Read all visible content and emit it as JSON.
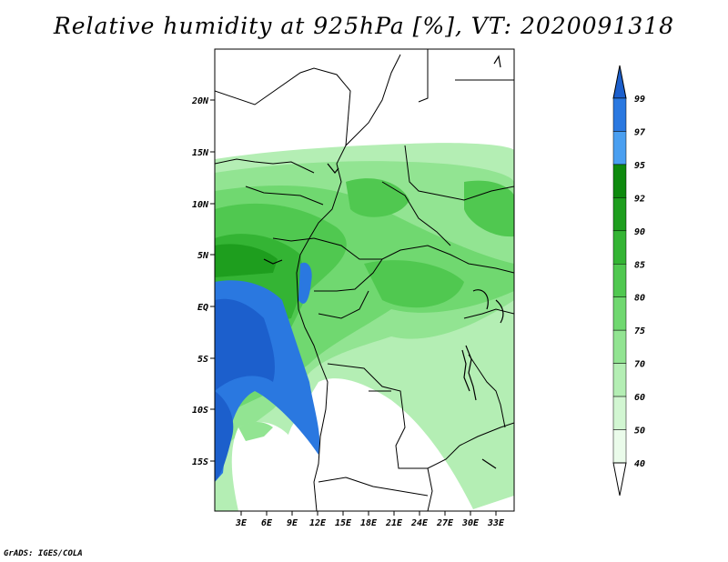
{
  "title": "Relative humidity at 925hPa [%], VT: 2020091318",
  "credit": "GrADS: IGES/COLA",
  "lat_ticks": [
    "20N",
    "15N",
    "10N",
    "5N",
    "EQ",
    "5S",
    "10S",
    "15S"
  ],
  "lon_ticks": [
    "3E",
    "6E",
    "9E",
    "12E",
    "15E",
    "18E",
    "21E",
    "24E",
    "27E",
    "30E",
    "33E"
  ],
  "colorbar": {
    "labels": [
      "99",
      "97",
      "95",
      "92",
      "90",
      "85",
      "80",
      "75",
      "70",
      "60",
      "50",
      "40"
    ],
    "colors": [
      "#1c5fcc",
      "#2a78e0",
      "#4a9ff0",
      "#0e8a0e",
      "#1e9e1e",
      "#34b434",
      "#50c850",
      "#70d870",
      "#92e492",
      "#b4eeb4",
      "#d2f6d2",
      "#eafbea"
    ]
  }
}
